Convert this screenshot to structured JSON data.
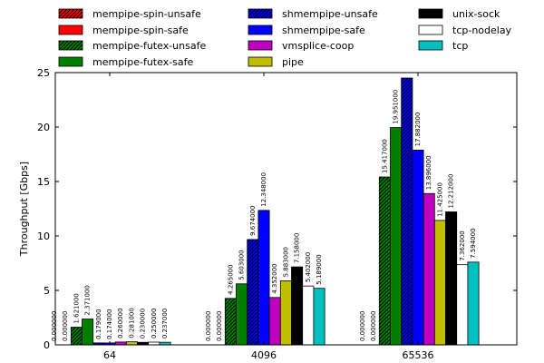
{
  "chart_data": {
    "type": "bar",
    "categories": [
      "64",
      "4096",
      "65536"
    ],
    "ylabel": "Throughput [Gbps]",
    "xlabel": "",
    "ylim": [
      0,
      25
    ],
    "yticks": [
      0,
      5,
      10,
      15,
      20,
      25
    ],
    "grid": false,
    "legend_position": "top",
    "series": [
      {
        "name": "mempipe-spin-unsafe",
        "color": "#ff0000",
        "hatch": true,
        "values": [
          0.0,
          0.0,
          0.0
        ],
        "labels": [
          "0.000000",
          "0.000000",
          "0.000000"
        ]
      },
      {
        "name": "mempipe-spin-safe",
        "color": "#ff0000",
        "hatch": false,
        "values": [
          0.0,
          0.0,
          0.0
        ],
        "labels": [
          "0.000000",
          "0.000000",
          "0.000000"
        ]
      },
      {
        "name": "mempipe-futex-unsafe",
        "color": "#007f00",
        "hatch": true,
        "values": [
          1.621,
          4.265,
          15.417
        ],
        "labels": [
          "1.621000",
          "4.265000",
          "15.417000"
        ]
      },
      {
        "name": "mempipe-futex-safe",
        "color": "#007f00",
        "hatch": false,
        "values": [
          2.371,
          5.603,
          19.951
        ],
        "labels": [
          "2.371000",
          "5.603000",
          "19.951000"
        ]
      },
      {
        "name": "shmempipe-unsafe",
        "color": "#0000ff",
        "hatch": true,
        "values": [
          0.179,
          9.674,
          24.5
        ],
        "labels": [
          "0.179000",
          "9.674000",
          ""
        ]
      },
      {
        "name": "shmempipe-safe",
        "color": "#0000ff",
        "hatch": false,
        "values": [
          0.174,
          12.348,
          17.882
        ],
        "labels": [
          "0.174000",
          "12.348000",
          "17.882000"
        ]
      },
      {
        "name": "vmsplice-coop",
        "color": "#bf00bf",
        "hatch": false,
        "values": [
          0.26,
          4.352,
          13.896
        ],
        "labels": [
          "0.260000",
          "4.352000",
          "13.896000"
        ]
      },
      {
        "name": "pipe",
        "color": "#bfbf00",
        "hatch": false,
        "values": [
          0.281,
          5.883,
          11.425
        ],
        "labels": [
          "0.281000",
          "5.883000",
          "11.425000"
        ]
      },
      {
        "name": "unix-sock",
        "color": "#000000",
        "hatch": false,
        "values": [
          0.23,
          7.158,
          12.212
        ],
        "labels": [
          "0.230000",
          "7.158000",
          "12.212000"
        ]
      },
      {
        "name": "tcp-nodelay",
        "color": "#ffffff",
        "hatch": false,
        "values": [
          0.25,
          5.402,
          7.362
        ],
        "labels": [
          "0.250000",
          "5.402000",
          "7.362000"
        ]
      },
      {
        "name": "tcp",
        "color": "#00bfbf",
        "hatch": false,
        "values": [
          0.237,
          5.189,
          7.594
        ],
        "labels": [
          "0.237000",
          "5.189000",
          "7.594000"
        ]
      }
    ]
  }
}
